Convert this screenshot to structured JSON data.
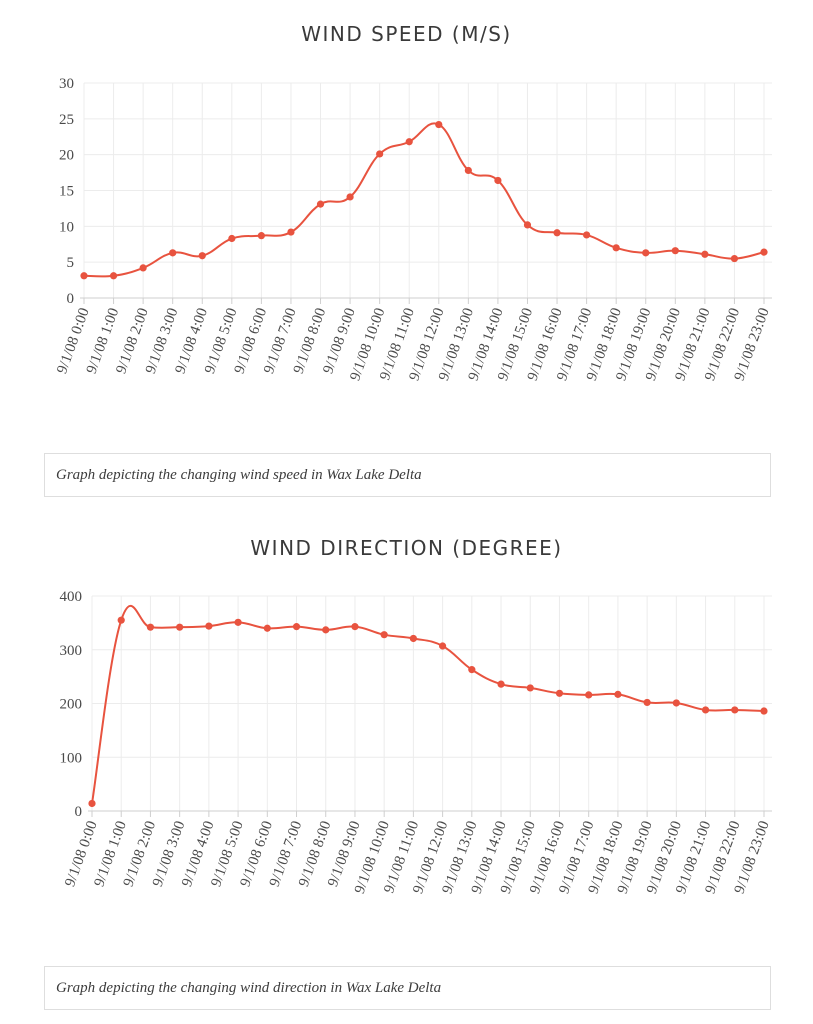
{
  "chart_data": [
    {
      "type": "line",
      "title": "WIND SPEED (M/S)",
      "caption": "Graph depicting the changing wind speed in Wax Lake Delta",
      "x": [
        "9/1/08 0:00",
        "9/1/08 1:00",
        "9/1/08 2:00",
        "9/1/08 3:00",
        "9/1/08 4:00",
        "9/1/08 5:00",
        "9/1/08 6:00",
        "9/1/08 7:00",
        "9/1/08 8:00",
        "9/1/08 9:00",
        "9/1/08 10:00",
        "9/1/08 11:00",
        "9/1/08 12:00",
        "9/1/08 13:00",
        "9/1/08 14:00",
        "9/1/08 15:00",
        "9/1/08 16:00",
        "9/1/08 17:00",
        "9/1/08 18:00",
        "9/1/08 19:00",
        "9/1/08 20:00",
        "9/1/08 21:00",
        "9/1/08 22:00",
        "9/1/08 23:00"
      ],
      "values": [
        3.1,
        3.1,
        4.2,
        6.3,
        5.9,
        8.3,
        8.7,
        9.2,
        13.1,
        14.1,
        20.1,
        21.8,
        24.2,
        17.8,
        16.4,
        10.2,
        9.1,
        8.8,
        7.0,
        6.3,
        6.6,
        6.1,
        5.5,
        6.4
      ],
      "ylim": [
        0,
        30
      ],
      "yticks": [
        0,
        5,
        10,
        15,
        20,
        25,
        30
      ],
      "grid": true,
      "line_color": "#e8533f"
    },
    {
      "type": "line",
      "title": "WIND DIRECTION (DEGREE)",
      "caption": "Graph depicting the changing wind direction in Wax Lake Delta",
      "x": [
        "9/1/08 0:00",
        "9/1/08 1:00",
        "9/1/08 2:00",
        "9/1/08 3:00",
        "9/1/08 4:00",
        "9/1/08 5:00",
        "9/1/08 6:00",
        "9/1/08 7:00",
        "9/1/08 8:00",
        "9/1/08 9:00",
        "9/1/08 10:00",
        "9/1/08 11:00",
        "9/1/08 12:00",
        "9/1/08 13:00",
        "9/1/08 14:00",
        "9/1/08 15:00",
        "9/1/08 16:00",
        "9/1/08 17:00",
        "9/1/08 18:00",
        "9/1/08 19:00",
        "9/1/08 20:00",
        "9/1/08 21:00",
        "9/1/08 22:00",
        "9/1/08 23:00"
      ],
      "values": [
        14,
        355,
        342,
        342,
        344,
        351,
        340,
        343,
        337,
        343,
        328,
        321,
        307,
        263,
        236,
        229,
        219,
        216,
        217,
        202,
        201,
        188,
        188,
        186
      ],
      "ylim": [
        0,
        400
      ],
      "yticks": [
        0,
        100,
        200,
        300,
        400
      ],
      "grid": true,
      "line_color": "#e8533f"
    }
  ]
}
